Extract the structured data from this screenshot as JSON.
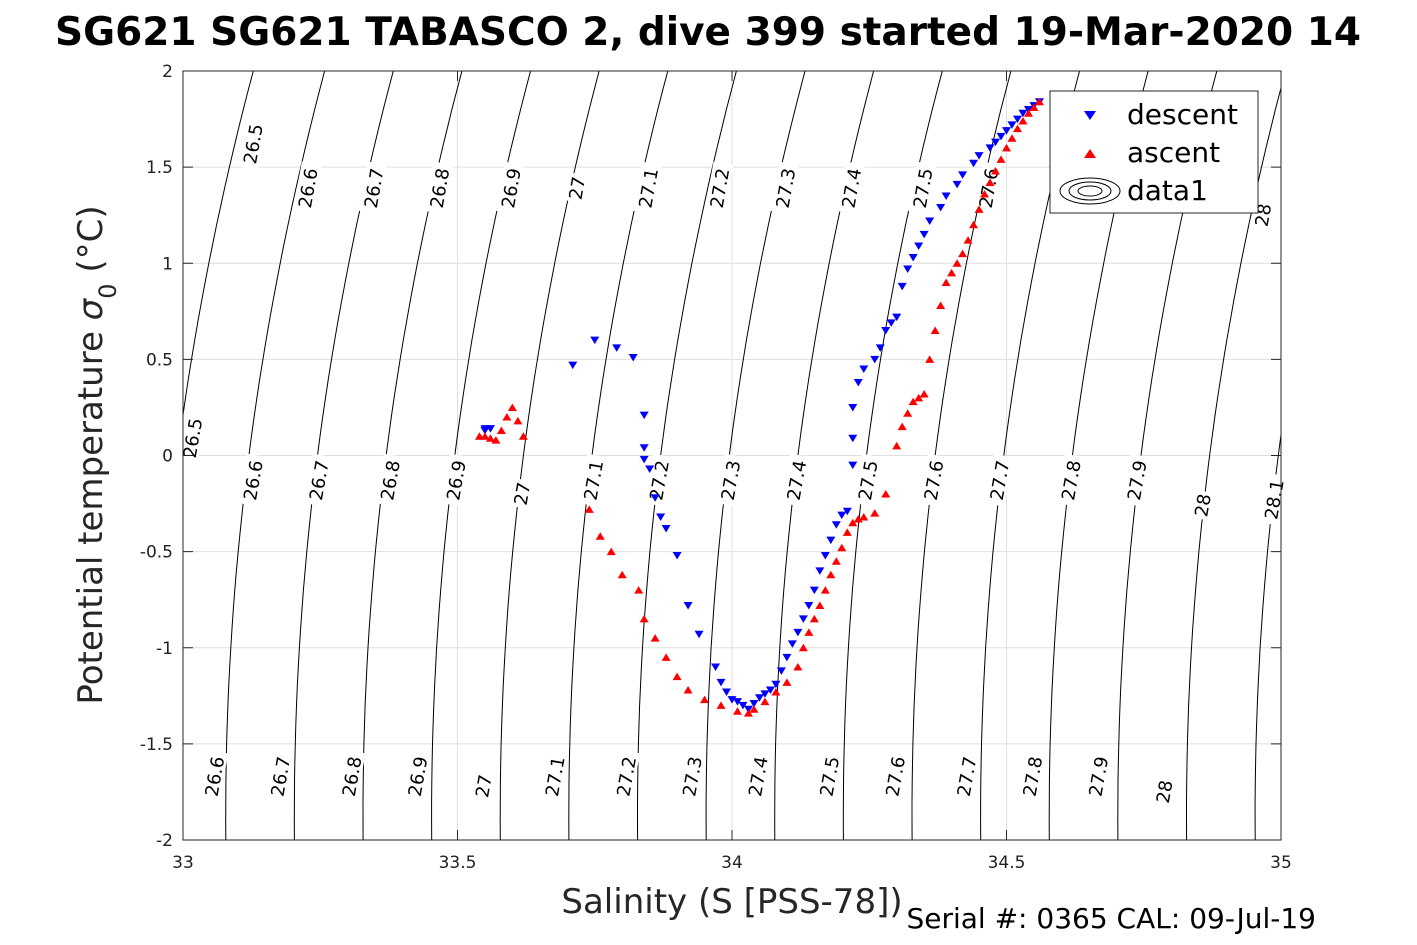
{
  "chart_data": {
    "type": "scatter",
    "title": "SG621 SG621 TABASCO 2, dive 399 started 19-Mar-2020 14",
    "xlabel": "Salinity (S [PSS-78])",
    "ylabel": "Potential temperature",
    "ylabel_sym": "σ",
    "ylabel_sub": "0",
    "ylabel_unit": " (°C)",
    "xlim": [
      33,
      35
    ],
    "ylim": [
      -2,
      2
    ],
    "x_ticks": [
      33,
      33.5,
      34,
      34.5,
      35
    ],
    "x_tick_labels": [
      "33",
      "33.5",
      "34",
      "34.5",
      "35"
    ],
    "y_ticks": [
      -2,
      -1.5,
      -1,
      -0.5,
      0,
      0.5,
      1,
      1.5,
      2
    ],
    "y_tick_labels": [
      "-2",
      "-1.5",
      "-1",
      "-0.5",
      "0",
      "0.5",
      "1",
      "1.5",
      "2"
    ],
    "grid": true,
    "legend_position": "top-right",
    "footer": "Serial #: 0365  CAL: 09-Jul-19",
    "contours": {
      "levels": [
        26.5,
        26.6,
        26.7,
        26.8,
        26.9,
        27,
        27.1,
        27.2,
        27.3,
        27.4,
        27.5,
        27.6,
        27.7,
        27.8,
        27.9,
        28,
        28.1
      ],
      "level_labels": [
        "26.5",
        "26.6",
        "26.7",
        "26.8",
        "26.9",
        "27",
        "27.1",
        "27.2",
        "27.3",
        "27.4",
        "27.5",
        "27.6",
        "27.7",
        "27.8",
        "27.9",
        "28",
        "28.1"
      ],
      "salinity_at_t0": [
        32.99,
        33.12,
        33.245,
        33.37,
        33.495,
        33.62,
        33.745,
        33.87,
        33.995,
        34.12,
        34.245,
        34.37,
        34.495,
        34.62,
        34.745,
        34.87,
        34.995
      ],
      "slope_per_degC": 0.045,
      "top_labels": [
        {
          "text": "26.5",
          "s": 33.13,
          "t": 1.62
        },
        {
          "text": "26.6",
          "s": 33.23,
          "t": 1.39
        },
        {
          "text": "26.7",
          "s": 33.35,
          "t": 1.39
        },
        {
          "text": "26.8",
          "s": 33.47,
          "t": 1.39
        },
        {
          "text": "26.9",
          "s": 33.6,
          "t": 1.39
        },
        {
          "text": "27",
          "s": 33.72,
          "t": 1.39
        },
        {
          "text": "27.1",
          "s": 33.85,
          "t": 1.39
        },
        {
          "text": "27.2",
          "s": 33.98,
          "t": 1.39
        },
        {
          "text": "27.3",
          "s": 34.1,
          "t": 1.39
        },
        {
          "text": "27.4",
          "s": 34.22,
          "t": 1.39
        },
        {
          "text": "27.5",
          "s": 34.35,
          "t": 1.39
        },
        {
          "text": "27.6",
          "s": 34.47,
          "t": 1.39
        },
        {
          "text": "28",
          "s": 34.97,
          "t": 1.25
        }
      ],
      "mid_labels": [
        {
          "text": "26.5",
          "s": 33.02,
          "t": 0.09
        },
        {
          "text": "26.6",
          "s": 33.13,
          "t": -0.13
        },
        {
          "text": "26.7",
          "s": 33.25,
          "t": -0.13
        },
        {
          "text": "26.8",
          "s": 33.38,
          "t": -0.13
        },
        {
          "text": "26.9",
          "s": 33.5,
          "t": -0.13
        },
        {
          "text": "27",
          "s": 33.62,
          "t": -0.2
        },
        {
          "text": "27.1",
          "s": 33.75,
          "t": -0.13
        },
        {
          "text": "27.2",
          "s": 33.87,
          "t": -0.13
        },
        {
          "text": "27.3",
          "s": 34.0,
          "t": -0.13
        },
        {
          "text": "27.4",
          "s": 34.12,
          "t": -0.13
        },
        {
          "text": "27.5",
          "s": 34.25,
          "t": -0.13
        },
        {
          "text": "27.6",
          "s": 34.37,
          "t": -0.13
        },
        {
          "text": "27.7",
          "s": 34.49,
          "t": -0.13
        },
        {
          "text": "27.8",
          "s": 34.62,
          "t": -0.13
        },
        {
          "text": "27.9",
          "s": 34.74,
          "t": -0.13
        },
        {
          "text": "28",
          "s": 34.86,
          "t": -0.26
        },
        {
          "text": "28.1",
          "s": 34.99,
          "t": -0.23
        }
      ],
      "bottom_labels": [
        {
          "text": "26.6",
          "s": 33.06,
          "t": -1.67
        },
        {
          "text": "26.7",
          "s": 33.18,
          "t": -1.67
        },
        {
          "text": "26.8",
          "s": 33.31,
          "t": -1.67
        },
        {
          "text": "26.9",
          "s": 33.43,
          "t": -1.67
        },
        {
          "text": "27",
          "s": 33.55,
          "t": -1.72
        },
        {
          "text": "27.1",
          "s": 33.68,
          "t": -1.67
        },
        {
          "text": "27.2",
          "s": 33.81,
          "t": -1.67
        },
        {
          "text": "27.3",
          "s": 33.93,
          "t": -1.67
        },
        {
          "text": "27.4",
          "s": 34.05,
          "t": -1.67
        },
        {
          "text": "27.5",
          "s": 34.18,
          "t": -1.67
        },
        {
          "text": "27.6",
          "s": 34.3,
          "t": -1.67
        },
        {
          "text": "27.7",
          "s": 34.43,
          "t": -1.67
        },
        {
          "text": "27.8",
          "s": 34.55,
          "t": -1.67
        },
        {
          "text": "27.9",
          "s": 34.67,
          "t": -1.67
        },
        {
          "text": "28",
          "s": 34.79,
          "t": -1.75
        }
      ]
    },
    "series": [
      {
        "name": "descent",
        "color": "#0000ff",
        "marker": "triangle-down",
        "x": [
          33.55,
          33.56,
          33.55,
          33.71,
          33.75,
          33.79,
          33.82,
          33.84,
          33.84,
          33.84,
          33.85,
          33.86,
          33.87,
          33.88,
          33.9,
          33.92,
          33.94,
          33.97,
          33.98,
          33.99,
          34.0,
          34.01,
          34.02,
          34.03,
          34.04,
          34.05,
          34.06,
          34.07,
          34.08,
          34.09,
          34.1,
          34.11,
          34.12,
          34.13,
          34.14,
          34.15,
          34.16,
          34.17,
          34.18,
          34.19,
          34.2,
          34.21,
          34.22,
          34.22,
          34.22,
          34.23,
          34.24,
          34.26,
          34.27,
          34.28,
          34.29,
          34.3,
          34.31,
          34.32,
          34.33,
          34.34,
          34.35,
          34.36,
          34.38,
          34.39,
          34.41,
          34.42,
          34.44,
          34.45,
          34.47,
          34.48,
          34.49,
          34.5,
          34.51,
          34.52,
          34.53,
          34.54,
          34.55,
          34.56
        ],
        "y": [
          0.14,
          0.14,
          0.13,
          0.47,
          0.6,
          0.56,
          0.51,
          0.21,
          0.04,
          -0.02,
          -0.07,
          -0.22,
          -0.32,
          -0.38,
          -0.52,
          -0.78,
          -0.93,
          -1.1,
          -1.18,
          -1.23,
          -1.27,
          -1.28,
          -1.3,
          -1.32,
          -1.29,
          -1.26,
          -1.24,
          -1.22,
          -1.19,
          -1.12,
          -1.05,
          -0.98,
          -0.92,
          -0.85,
          -0.78,
          -0.7,
          -0.6,
          -0.52,
          -0.44,
          -0.36,
          -0.31,
          -0.29,
          -0.05,
          0.09,
          0.25,
          0.38,
          0.45,
          0.5,
          0.56,
          0.65,
          0.69,
          0.72,
          0.88,
          0.97,
          1.03,
          1.09,
          1.15,
          1.22,
          1.29,
          1.35,
          1.41,
          1.46,
          1.52,
          1.56,
          1.6,
          1.63,
          1.66,
          1.69,
          1.72,
          1.75,
          1.78,
          1.8,
          1.82,
          1.84
        ]
      },
      {
        "name": "ascent",
        "color": "#ff0000",
        "marker": "triangle-up",
        "x": [
          33.54,
          33.55,
          33.56,
          33.57,
          33.58,
          33.59,
          33.6,
          33.61,
          33.62,
          33.74,
          33.76,
          33.78,
          33.8,
          33.83,
          33.84,
          33.86,
          33.88,
          33.9,
          33.92,
          33.95,
          33.98,
          34.01,
          34.03,
          34.04,
          34.06,
          34.08,
          34.1,
          34.12,
          34.13,
          34.14,
          34.15,
          34.16,
          34.17,
          34.18,
          34.19,
          34.2,
          34.21,
          34.22,
          34.23,
          34.24,
          34.26,
          34.28,
          34.3,
          34.31,
          34.32,
          34.33,
          34.34,
          34.35,
          34.36,
          34.37,
          34.38,
          34.39,
          34.4,
          34.41,
          34.42,
          34.43,
          34.44,
          34.45,
          34.46,
          34.47,
          34.48,
          34.49,
          34.5,
          34.51,
          34.52,
          34.53,
          34.54,
          34.55,
          34.56
        ],
        "y": [
          0.1,
          0.1,
          0.09,
          0.08,
          0.13,
          0.2,
          0.25,
          0.18,
          0.1,
          -0.28,
          -0.42,
          -0.5,
          -0.62,
          -0.7,
          -0.85,
          -0.95,
          -1.05,
          -1.15,
          -1.22,
          -1.27,
          -1.3,
          -1.33,
          -1.34,
          -1.32,
          -1.28,
          -1.23,
          -1.18,
          -1.1,
          -1.0,
          -0.92,
          -0.85,
          -0.78,
          -0.7,
          -0.62,
          -0.55,
          -0.48,
          -0.4,
          -0.35,
          -0.33,
          -0.32,
          -0.3,
          -0.2,
          0.05,
          0.15,
          0.22,
          0.28,
          0.3,
          0.32,
          0.5,
          0.65,
          0.78,
          0.9,
          0.95,
          1.0,
          1.05,
          1.12,
          1.2,
          1.28,
          1.36,
          1.42,
          1.48,
          1.54,
          1.6,
          1.65,
          1.7,
          1.74,
          1.78,
          1.81,
          1.84
        ]
      }
    ],
    "legend": {
      "entries": [
        {
          "label": "descent",
          "symbol": "triangle-down",
          "color": "#0000ff"
        },
        {
          "label": "ascent",
          "symbol": "triangle-up",
          "color": "#ff0000"
        },
        {
          "label": "data1",
          "symbol": "contour",
          "color": "#000000"
        }
      ]
    }
  }
}
